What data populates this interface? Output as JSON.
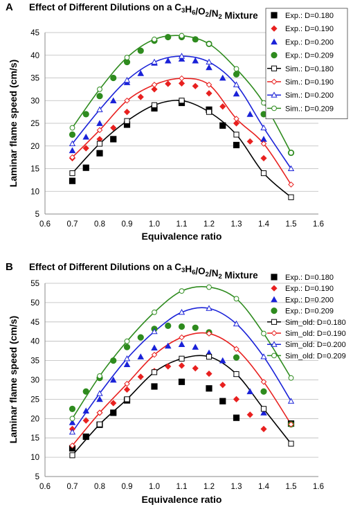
{
  "chart_data": [
    {
      "panel": "A",
      "type": "scatter",
      "title": "Effect of Different Dilutions on a C3H6/O2/N2 Mixture",
      "xlabel": "Equivalence ratio",
      "ylabel": "Laminar flame speed (cm/s)",
      "xlim": [
        0.6,
        1.6
      ],
      "ylim": [
        5,
        45
      ],
      "xticks": [
        "0.6",
        "0.7",
        "0.8",
        "0.9",
        "1.0",
        "1.1",
        "1.2",
        "1.3",
        "1.4",
        "1.5",
        "1.6"
      ],
      "yticks": [
        "5",
        "10",
        "15",
        "20",
        "25",
        "30",
        "35",
        "40",
        "45"
      ],
      "grid": "horizontal",
      "legend": "top-right",
      "series": [
        {
          "name": "Exp.: D=0.180",
          "kind": "exp",
          "marker": "square",
          "color": "#000000",
          "x": [
            0.7,
            0.75,
            0.8,
            0.85,
            0.9,
            1.0,
            1.1,
            1.2,
            1.25,
            1.3
          ],
          "y": [
            12.3,
            15.2,
            18.4,
            21.5,
            24.7,
            28.3,
            29.5,
            28.0,
            24.5,
            20.2
          ]
        },
        {
          "name": "Exp.: D=0.190",
          "kind": "exp",
          "marker": "diamond",
          "color": "#e8201f",
          "x": [
            0.7,
            0.75,
            0.8,
            0.85,
            0.9,
            0.95,
            1.0,
            1.05,
            1.1,
            1.15,
            1.2,
            1.25,
            1.3,
            1.35,
            1.4
          ],
          "y": [
            17.3,
            19.5,
            21.5,
            24.0,
            27.5,
            30.8,
            32.5,
            33.7,
            33.8,
            33.2,
            31.6,
            28.7,
            25.0,
            21.0,
            17.3
          ]
        },
        {
          "name": "Exp.: D=0.200",
          "kind": "exp",
          "marker": "triangle",
          "color": "#1a22d8",
          "x": [
            0.7,
            0.75,
            0.8,
            0.85,
            0.9,
            0.95,
            1.0,
            1.05,
            1.1,
            1.15,
            1.2,
            1.25,
            1.3,
            1.35,
            1.4
          ],
          "y": [
            19.0,
            22.0,
            25.0,
            30.0,
            34.0,
            36.0,
            38.3,
            38.8,
            39.2,
            38.8,
            37.3,
            35.0,
            31.5,
            27.0,
            21.5
          ]
        },
        {
          "name": "Exp.: D=0.209",
          "kind": "exp",
          "marker": "circle",
          "color": "#2e8b1e",
          "x": [
            0.7,
            0.75,
            0.8,
            0.85,
            0.9,
            0.95,
            1.0,
            1.05,
            1.1,
            1.15,
            1.2,
            1.3,
            1.4,
            1.5
          ],
          "y": [
            22.5,
            27.0,
            31.0,
            35.0,
            38.5,
            41.0,
            43.2,
            44.0,
            44.0,
            43.5,
            42.5,
            35.8,
            27.0,
            18.5
          ]
        },
        {
          "name": "Sim.: D=0.180",
          "kind": "sim",
          "marker": "open-square",
          "color": "#000000",
          "x": [
            0.7,
            0.8,
            0.9,
            1.0,
            1.1,
            1.2,
            1.3,
            1.4,
            1.5
          ],
          "y": [
            14.0,
            20.5,
            25.5,
            29.0,
            30.0,
            27.5,
            22.5,
            14.0,
            8.7
          ]
        },
        {
          "name": "Sim.: D=0.190",
          "kind": "sim",
          "marker": "open-diamond",
          "color": "#e8201f",
          "x": [
            0.7,
            0.8,
            0.9,
            1.0,
            1.1,
            1.2,
            1.3,
            1.4,
            1.5
          ],
          "y": [
            17.5,
            23.5,
            30.0,
            33.5,
            34.9,
            33.5,
            26.0,
            20.5,
            11.5
          ]
        },
        {
          "name": "Sim.: D=0.200",
          "kind": "sim",
          "marker": "open-triangle",
          "color": "#1a22d8",
          "x": [
            0.7,
            0.8,
            0.9,
            1.0,
            1.1,
            1.2,
            1.3,
            1.4,
            1.5
          ],
          "y": [
            20.5,
            28.0,
            34.5,
            38.5,
            39.8,
            38.5,
            33.5,
            24.0,
            15.0
          ]
        },
        {
          "name": "Sim.: D=0.209",
          "kind": "sim",
          "marker": "open-circle",
          "color": "#2e8b1e",
          "x": [
            0.7,
            0.8,
            0.9,
            1.0,
            1.1,
            1.2,
            1.3,
            1.4,
            1.5
          ],
          "y": [
            24.0,
            32.5,
            39.5,
            43.5,
            44.3,
            42.5,
            37.0,
            29.5,
            18.5
          ]
        }
      ]
    },
    {
      "panel": "B",
      "type": "scatter",
      "title": "Effect of Different Dilutions on a C3H6/O2/N2 Mixture",
      "xlabel": "Equivalence ratio",
      "ylabel": "Laminar flame speed (cm/s)",
      "xlim": [
        0.6,
        1.6
      ],
      "ylim": [
        5,
        55
      ],
      "xticks": [
        "0.6",
        "0.7",
        "0.8",
        "0.9",
        "1.0",
        "1.1",
        "1.2",
        "1.3",
        "1.4",
        "1.5",
        "1.6"
      ],
      "yticks": [
        "5",
        "10",
        "15",
        "20",
        "25",
        "30",
        "35",
        "40",
        "45",
        "50",
        "55"
      ],
      "grid": "horizontal",
      "legend": "top-right",
      "series": [
        {
          "name": "Exp.: D=0.180",
          "kind": "exp",
          "marker": "square",
          "color": "#000000",
          "x": [
            0.7,
            0.75,
            0.8,
            0.85,
            0.9,
            1.0,
            1.1,
            1.2,
            1.25,
            1.3,
            1.5
          ],
          "y": [
            12.3,
            15.3,
            18.4,
            21.5,
            24.7,
            28.3,
            29.5,
            27.8,
            24.5,
            20.2,
            18.7
          ]
        },
        {
          "name": "Exp.: D=0.190",
          "kind": "exp",
          "marker": "diamond",
          "color": "#e8201f",
          "x": [
            0.7,
            0.75,
            0.8,
            0.85,
            0.9,
            0.95,
            1.0,
            1.05,
            1.1,
            1.15,
            1.2,
            1.25,
            1.3,
            1.35,
            1.4
          ],
          "y": [
            17.3,
            19.5,
            21.5,
            24.0,
            27.5,
            30.8,
            32.3,
            33.5,
            33.7,
            33.0,
            31.6,
            28.7,
            25.0,
            21.0,
            17.3
          ]
        },
        {
          "name": "Exp.: D=0.200",
          "kind": "exp",
          "marker": "triangle",
          "color": "#1a22d8",
          "x": [
            0.7,
            0.75,
            0.8,
            0.85,
            0.9,
            0.95,
            1.0,
            1.05,
            1.1,
            1.15,
            1.2,
            1.25,
            1.3,
            1.35,
            1.4
          ],
          "y": [
            19.0,
            22.0,
            25.0,
            30.0,
            34.0,
            36.0,
            38.3,
            38.8,
            39.2,
            38.5,
            37.0,
            35.0,
            31.5,
            27.0,
            21.5
          ]
        },
        {
          "name": "Exp.: D=0.209",
          "kind": "exp",
          "marker": "circle",
          "color": "#2e8b1e",
          "x": [
            0.7,
            0.75,
            0.8,
            0.85,
            0.9,
            0.95,
            1.0,
            1.05,
            1.1,
            1.15,
            1.2,
            1.3,
            1.4,
            1.5
          ],
          "y": [
            22.5,
            27.0,
            30.5,
            35.0,
            38.5,
            41.0,
            43.2,
            44.0,
            43.8,
            43.5,
            42.3,
            35.8,
            27.0,
            18.5
          ]
        },
        {
          "name": "Sim_old: D=0.180",
          "kind": "sim",
          "marker": "open-square",
          "color": "#000000",
          "x": [
            0.7,
            0.8,
            0.9,
            1.0,
            1.1,
            1.2,
            1.3,
            1.4,
            1.5
          ],
          "y": [
            10.5,
            18.5,
            25.0,
            32.0,
            35.5,
            36.0,
            31.5,
            22.5,
            13.5
          ]
        },
        {
          "name": "Sim_old: D=0.190",
          "kind": "sim",
          "marker": "open-diamond",
          "color": "#e8201f",
          "x": [
            0.7,
            0.8,
            0.9,
            1.0,
            1.1,
            1.2,
            1.3,
            1.4,
            1.5
          ],
          "y": [
            13.0,
            21.5,
            29.0,
            36.5,
            41.0,
            42.0,
            38.0,
            29.5,
            18.5
          ]
        },
        {
          "name": "Sim_old: D=0.200",
          "kind": "sim",
          "marker": "open-triangle",
          "color": "#1a22d8",
          "x": [
            0.7,
            0.8,
            0.9,
            1.0,
            1.1,
            1.2,
            1.3,
            1.4,
            1.5
          ],
          "y": [
            16.5,
            26.5,
            35.5,
            42.5,
            47.5,
            48.5,
            44.5,
            36.0,
            24.5
          ]
        },
        {
          "name": "Sim_old: D=0.209",
          "kind": "sim",
          "marker": "open-circle",
          "color": "#2e8b1e",
          "x": [
            0.7,
            0.8,
            0.9,
            1.0,
            1.1,
            1.2,
            1.3,
            1.4,
            1.5
          ],
          "y": [
            20.0,
            31.0,
            40.0,
            47.5,
            53.0,
            54.0,
            51.0,
            42.0,
            30.5
          ]
        }
      ]
    }
  ]
}
